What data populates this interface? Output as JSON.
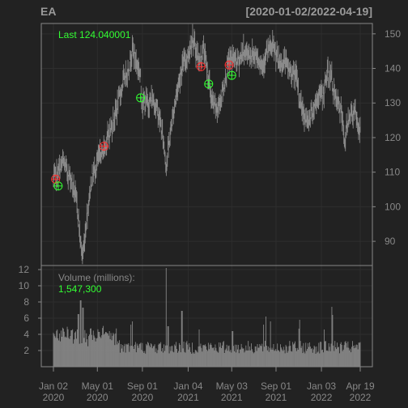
{
  "chart_data": {
    "type": "candlestick",
    "symbol": "EA",
    "date_range": "[2020-01-02/2022-04-19]",
    "last_label": "Last 124.040001",
    "price_axis": {
      "ticks": [
        90,
        100,
        110,
        120,
        130,
        140,
        150
      ],
      "range": [
        83,
        153
      ]
    },
    "price_path": [
      [
        "2020-01-02",
        107.5
      ],
      [
        "2020-01-15",
        110
      ],
      [
        "2020-01-28",
        113
      ],
      [
        "2020-02-10",
        110
      ],
      [
        "2020-02-20",
        108
      ],
      [
        "2020-03-02",
        103
      ],
      [
        "2020-03-10",
        98
      ],
      [
        "2020-03-16",
        89
      ],
      [
        "2020-03-23",
        86
      ],
      [
        "2020-04-01",
        96
      ],
      [
        "2020-04-15",
        108
      ],
      [
        "2020-05-01",
        113
      ],
      [
        "2020-05-20",
        117
      ],
      [
        "2020-06-05",
        122
      ],
      [
        "2020-06-25",
        129
      ],
      [
        "2020-07-10",
        136
      ],
      [
        "2020-07-25",
        140
      ],
      [
        "2020-08-05",
        146
      ],
      [
        "2020-08-15",
        142
      ],
      [
        "2020-08-25",
        139
      ],
      [
        "2020-09-01",
        130
      ],
      [
        "2020-09-15",
        130
      ],
      [
        "2020-10-01",
        131
      ],
      [
        "2020-10-15",
        127
      ],
      [
        "2020-10-29",
        119
      ],
      [
        "2020-11-05",
        112
      ],
      [
        "2020-11-20",
        124
      ],
      [
        "2020-12-05",
        134
      ],
      [
        "2020-12-20",
        141
      ],
      [
        "2021-01-04",
        144
      ],
      [
        "2021-01-15",
        149
      ],
      [
        "2021-01-25",
        145
      ],
      [
        "2021-02-05",
        142
      ],
      [
        "2021-02-15",
        146
      ],
      [
        "2021-03-01",
        137
      ],
      [
        "2021-03-10",
        130
      ],
      [
        "2021-03-25",
        128
      ],
      [
        "2021-04-10",
        134
      ],
      [
        "2021-04-25",
        142
      ],
      [
        "2021-05-05",
        143
      ],
      [
        "2021-05-20",
        142
      ],
      [
        "2021-06-05",
        145
      ],
      [
        "2021-06-25",
        144
      ],
      [
        "2021-07-10",
        144
      ],
      [
        "2021-07-25",
        141
      ],
      [
        "2021-08-10",
        145
      ],
      [
        "2021-08-25",
        146
      ],
      [
        "2021-09-10",
        141
      ],
      [
        "2021-09-25",
        142
      ],
      [
        "2021-10-10",
        139
      ],
      [
        "2021-10-25",
        138
      ],
      [
        "2021-11-05",
        131
      ],
      [
        "2021-11-25",
        124
      ],
      [
        "2021-12-10",
        128
      ],
      [
        "2021-12-25",
        132
      ],
      [
        "2022-01-10",
        133
      ],
      [
        "2022-01-20",
        139
      ],
      [
        "2022-01-31",
        137
      ],
      [
        "2022-02-10",
        131
      ],
      [
        "2022-02-25",
        128
      ],
      [
        "2022-03-08",
        119
      ],
      [
        "2022-03-20",
        127
      ],
      [
        "2022-04-05",
        127
      ],
      [
        "2022-04-19",
        121
      ]
    ],
    "signals": [
      {
        "date": "2020-01-08",
        "price": 108,
        "color": "#ff3333"
      },
      {
        "date": "2020-01-15",
        "price": 106,
        "color": "#33ff33"
      },
      {
        "date": "2020-05-19",
        "price": 117.5,
        "color": "#ff3333"
      },
      {
        "date": "2020-08-27",
        "price": 131.5,
        "color": "#33ff33"
      },
      {
        "date": "2021-02-08",
        "price": 140.5,
        "color": "#ff3333"
      },
      {
        "date": "2021-03-01",
        "price": 135.5,
        "color": "#33ff33"
      },
      {
        "date": "2021-04-26",
        "price": 141,
        "color": "#ff3333"
      },
      {
        "date": "2021-05-03",
        "price": 138,
        "color": "#33ff33"
      }
    ],
    "volume": {
      "label": "Volume (millions):",
      "last_value": "1,547,300",
      "ticks": [
        2,
        4,
        6,
        8,
        10,
        12
      ],
      "range": [
        0,
        12.5
      ],
      "spikes": [
        [
          "2020-01-28",
          4.7
        ],
        [
          "2020-02-20",
          4.5
        ],
        [
          "2020-03-10",
          6.5
        ],
        [
          "2020-03-16",
          8.2
        ],
        [
          "2020-03-23",
          7.3
        ],
        [
          "2020-05-06",
          4.3
        ],
        [
          "2020-07-31",
          5.2
        ],
        [
          "2020-08-05",
          5.6
        ],
        [
          "2020-11-05",
          12.2
        ],
        [
          "2020-11-10",
          5.0
        ],
        [
          "2020-12-18",
          6.9
        ],
        [
          "2021-02-03",
          4.6
        ],
        [
          "2021-05-05",
          4.4
        ],
        [
          "2021-07-29",
          5.2
        ],
        [
          "2021-08-04",
          6.2
        ],
        [
          "2021-08-17",
          5.6
        ],
        [
          "2021-11-02",
          4.7
        ],
        [
          "2021-11-04",
          5.8
        ],
        [
          "2022-01-10",
          4.6
        ],
        [
          "2022-02-01",
          7.4
        ],
        [
          "2022-02-02",
          6.4
        ]
      ]
    },
    "x_axis": {
      "ticks": [
        {
          "date": "2020-01-02",
          "l1": "Jan 02",
          "l2": "2020"
        },
        {
          "date": "2020-05-01",
          "l1": "May 01",
          "l2": "2020"
        },
        {
          "date": "2020-09-01",
          "l1": "Sep 01",
          "l2": "2020"
        },
        {
          "date": "2021-01-04",
          "l1": "Jan 04",
          "l2": "2021"
        },
        {
          "date": "2021-05-03",
          "l1": "May 03",
          "l2": "2021"
        },
        {
          "date": "2021-09-01",
          "l1": "Sep 01",
          "l2": "2021"
        },
        {
          "date": "2022-01-03",
          "l1": "Jan 03",
          "l2": "2022"
        },
        {
          "date": "2022-04-19",
          "l1": "Apr 19",
          "l2": "2022"
        }
      ]
    },
    "colors": {
      "background": "#222222",
      "frame": "#888888",
      "grid": "#2e2e2e",
      "axis_text": "#888888",
      "title_text": "#9a9a9a",
      "price_line": "#8a8a8a",
      "volume_bar": "#858585",
      "highlight": "#33ff33"
    }
  }
}
